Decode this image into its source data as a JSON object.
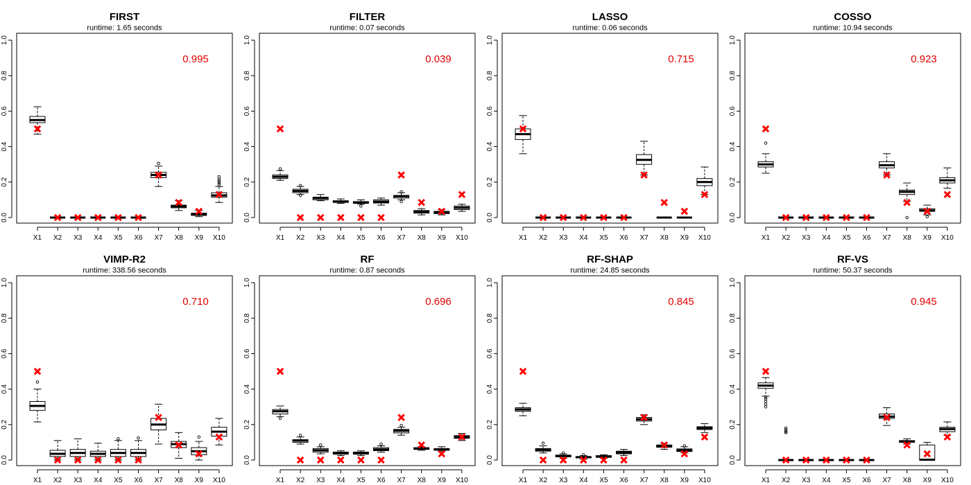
{
  "colors": {
    "box": "#000000",
    "truth": "#ff0000",
    "score": "#e00000"
  },
  "chart_data": [
    {
      "type": "boxplot",
      "title": "FIRST",
      "subtitle": "runtime: 1.65 seconds",
      "score": "0.995",
      "categories": [
        "X1",
        "X2",
        "X3",
        "X4",
        "X5",
        "X6",
        "X7",
        "X8",
        "X9",
        "X10"
      ],
      "ylim": [
        0,
        1
      ],
      "yticks": [
        "0.0",
        "0.2",
        "0.4",
        "0.6",
        "0.8",
        "1.0"
      ],
      "boxes": [
        {
          "lw": 0.47,
          "q1": 0.535,
          "med": 0.55,
          "q3": 0.57,
          "uw": 0.625,
          "out": []
        },
        {
          "lw": 0,
          "q1": 0,
          "med": 0,
          "q3": 0,
          "uw": 0,
          "out": []
        },
        {
          "lw": 0,
          "q1": 0,
          "med": 0,
          "q3": 0,
          "uw": 0,
          "out": []
        },
        {
          "lw": 0,
          "q1": 0,
          "med": 0,
          "q3": 0,
          "uw": 0,
          "out": []
        },
        {
          "lw": 0,
          "q1": 0,
          "med": 0,
          "q3": 0,
          "uw": 0,
          "out": []
        },
        {
          "lw": 0,
          "q1": 0,
          "med": 0,
          "q3": 0,
          "uw": 0,
          "out": []
        },
        {
          "lw": 0.175,
          "q1": 0.225,
          "med": 0.24,
          "q3": 0.255,
          "uw": 0.29,
          "out": [
            0.305
          ]
        },
        {
          "lw": 0.04,
          "q1": 0.055,
          "med": 0.063,
          "q3": 0.07,
          "uw": 0.095,
          "out": []
        },
        {
          "lw": 0.005,
          "q1": 0.012,
          "med": 0.018,
          "q3": 0.025,
          "uw": 0.04,
          "out": []
        },
        {
          "lw": 0.085,
          "q1": 0.115,
          "med": 0.125,
          "q3": 0.14,
          "uw": 0.175,
          "out": [
            0.185,
            0.195,
            0.205,
            0.215,
            0.23
          ]
        }
      ],
      "truth": [
        0.5,
        0,
        0,
        0,
        0,
        0,
        0.24,
        0.085,
        0.035,
        0.13
      ]
    },
    {
      "type": "boxplot",
      "title": "FILTER",
      "subtitle": "runtime: 0.07 seconds",
      "score": "0.039",
      "categories": [
        "X1",
        "X2",
        "X3",
        "X4",
        "X5",
        "X6",
        "X7",
        "X8",
        "X9",
        "X10"
      ],
      "ylim": [
        0,
        1
      ],
      "yticks": [
        "0.0",
        "0.2",
        "0.4",
        "0.6",
        "0.8",
        "1.0"
      ],
      "boxes": [
        {
          "lw": 0.21,
          "q1": 0.22,
          "med": 0.23,
          "q3": 0.24,
          "uw": 0.265,
          "out": [
            0.275
          ]
        },
        {
          "lw": 0.13,
          "q1": 0.14,
          "med": 0.15,
          "q3": 0.16,
          "uw": 0.175,
          "out": [
            0.125,
            0.18
          ]
        },
        {
          "lw": 0.095,
          "q1": 0.1,
          "med": 0.11,
          "q3": 0.115,
          "uw": 0.13,
          "out": []
        },
        {
          "lw": 0.08,
          "q1": 0.085,
          "med": 0.09,
          "q3": 0.095,
          "uw": 0.105,
          "out": []
        },
        {
          "lw": 0.075,
          "q1": 0.08,
          "med": 0.085,
          "q3": 0.09,
          "uw": 0.1,
          "out": [
            0.065
          ]
        },
        {
          "lw": 0.07,
          "q1": 0.082,
          "med": 0.09,
          "q3": 0.1,
          "uw": 0.11,
          "out": []
        },
        {
          "lw": 0.1,
          "q1": 0.11,
          "med": 0.12,
          "q3": 0.125,
          "uw": 0.14,
          "out": [
            0.09,
            0.145
          ]
        },
        {
          "lw": 0.015,
          "q1": 0.025,
          "med": 0.032,
          "q3": 0.04,
          "uw": 0.05,
          "out": []
        },
        {
          "lw": 0.015,
          "q1": 0.022,
          "med": 0.03,
          "q3": 0.035,
          "uw": 0.045,
          "out": []
        },
        {
          "lw": 0.035,
          "q1": 0.045,
          "med": 0.055,
          "q3": 0.065,
          "uw": 0.075,
          "out": []
        }
      ],
      "truth": [
        0.5,
        0,
        0,
        0,
        0,
        0,
        0.24,
        0.085,
        0.035,
        0.13
      ]
    },
    {
      "type": "boxplot",
      "title": "LASSO",
      "subtitle": "runtime: 0.06 seconds",
      "score": "0.715",
      "categories": [
        "X1",
        "X2",
        "X3",
        "X4",
        "X5",
        "X6",
        "X7",
        "X8",
        "X9",
        "X10"
      ],
      "ylim": [
        0,
        1
      ],
      "yticks": [
        "0.0",
        "0.2",
        "0.4",
        "0.6",
        "0.8",
        "1.0"
      ],
      "boxes": [
        {
          "lw": 0.36,
          "q1": 0.44,
          "med": 0.47,
          "q3": 0.5,
          "uw": 0.575,
          "out": []
        },
        {
          "lw": 0,
          "q1": 0,
          "med": 0,
          "q3": 0,
          "uw": 0,
          "out": []
        },
        {
          "lw": 0,
          "q1": 0,
          "med": 0,
          "q3": 0,
          "uw": 0,
          "out": []
        },
        {
          "lw": 0,
          "q1": 0,
          "med": 0,
          "q3": 0,
          "uw": 0,
          "out": []
        },
        {
          "lw": 0,
          "q1": 0,
          "med": 0,
          "q3": 0,
          "uw": 0,
          "out": []
        },
        {
          "lw": 0,
          "q1": 0,
          "med": 0,
          "q3": 0,
          "uw": 0,
          "out": []
        },
        {
          "lw": 0.24,
          "q1": 0.3,
          "med": 0.325,
          "q3": 0.355,
          "uw": 0.43,
          "out": []
        },
        {
          "lw": 0,
          "q1": 0,
          "med": 0,
          "q3": 0,
          "uw": 0,
          "out": []
        },
        {
          "lw": 0,
          "q1": 0,
          "med": 0,
          "q3": 0,
          "uw": 0,
          "out": []
        },
        {
          "lw": 0.13,
          "q1": 0.18,
          "med": 0.2,
          "q3": 0.22,
          "uw": 0.285,
          "out": []
        }
      ],
      "truth": [
        0.5,
        0,
        0,
        0,
        0,
        0,
        0.24,
        0.085,
        0.035,
        0.13
      ]
    },
    {
      "type": "boxplot",
      "title": "COSSO",
      "subtitle": "runtime: 10.94 seconds",
      "score": "0.923",
      "categories": [
        "X1",
        "X2",
        "X3",
        "X4",
        "X5",
        "X6",
        "X7",
        "X8",
        "X9",
        "X10"
      ],
      "ylim": [
        0,
        1
      ],
      "yticks": [
        "0.0",
        "0.2",
        "0.4",
        "0.6",
        "0.8",
        "1.0"
      ],
      "boxes": [
        {
          "lw": 0.25,
          "q1": 0.285,
          "med": 0.3,
          "q3": 0.315,
          "uw": 0.36,
          "out": [
            0.42
          ]
        },
        {
          "lw": 0,
          "q1": 0,
          "med": 0,
          "q3": 0,
          "uw": 0,
          "out": []
        },
        {
          "lw": 0,
          "q1": 0,
          "med": 0,
          "q3": 0,
          "uw": 0,
          "out": []
        },
        {
          "lw": 0,
          "q1": 0,
          "med": 0,
          "q3": 0,
          "uw": 0,
          "out": []
        },
        {
          "lw": 0,
          "q1": 0,
          "med": 0,
          "q3": 0,
          "uw": 0,
          "out": []
        },
        {
          "lw": 0,
          "q1": 0,
          "med": 0,
          "q3": 0,
          "uw": 0,
          "out": []
        },
        {
          "lw": 0.24,
          "q1": 0.28,
          "med": 0.295,
          "q3": 0.315,
          "uw": 0.36,
          "out": []
        },
        {
          "lw": 0.09,
          "q1": 0.13,
          "med": 0.145,
          "q3": 0.155,
          "uw": 0.195,
          "out": [
            0
          ]
        },
        {
          "lw": 0.015,
          "q1": 0.035,
          "med": 0.04,
          "q3": 0.05,
          "uw": 0.07,
          "out": [
            0.005
          ]
        },
        {
          "lw": 0.165,
          "q1": 0.195,
          "med": 0.21,
          "q3": 0.225,
          "uw": 0.28,
          "out": []
        }
      ],
      "truth": [
        0.5,
        0,
        0,
        0,
        0,
        0,
        0.24,
        0.085,
        0.035,
        0.13
      ]
    },
    {
      "type": "boxplot",
      "title": "VIMP-R2",
      "subtitle": "runtime: 338.56 seconds",
      "score": "0.710",
      "categories": [
        "X1",
        "X2",
        "X3",
        "X4",
        "X5",
        "X6",
        "X7",
        "X8",
        "X9",
        "X10"
      ],
      "ylim": [
        0,
        1
      ],
      "yticks": [
        "0.0",
        "0.2",
        "0.4",
        "0.6",
        "0.8",
        "1.0"
      ],
      "boxes": [
        {
          "lw": 0.215,
          "q1": 0.28,
          "med": 0.305,
          "q3": 0.33,
          "uw": 0.4,
          "out": [
            0.44
          ]
        },
        {
          "lw": 0,
          "q1": 0.02,
          "med": 0.035,
          "q3": 0.055,
          "uw": 0.11,
          "out": []
        },
        {
          "lw": 0,
          "q1": 0.02,
          "med": 0.04,
          "q3": 0.06,
          "uw": 0.12,
          "out": []
        },
        {
          "lw": 0,
          "q1": 0.02,
          "med": 0.035,
          "q3": 0.05,
          "uw": 0.095,
          "out": []
        },
        {
          "lw": 0,
          "q1": 0.02,
          "med": 0.04,
          "q3": 0.06,
          "uw": 0.11,
          "out": [
            0.12
          ]
        },
        {
          "lw": 0,
          "q1": 0.02,
          "med": 0.04,
          "q3": 0.06,
          "uw": 0.11,
          "out": [
            0.125
          ]
        },
        {
          "lw": 0.09,
          "q1": 0.17,
          "med": 0.2,
          "q3": 0.235,
          "uw": 0.315,
          "out": []
        },
        {
          "lw": 0.01,
          "q1": 0.07,
          "med": 0.09,
          "q3": 0.105,
          "uw": 0.155,
          "out": []
        },
        {
          "lw": 0,
          "q1": 0.03,
          "med": 0.05,
          "q3": 0.07,
          "uw": 0.105,
          "out": [
            0.13
          ]
        },
        {
          "lw": 0.085,
          "q1": 0.135,
          "med": 0.16,
          "q3": 0.185,
          "uw": 0.235,
          "out": []
        }
      ],
      "truth": [
        0.5,
        0,
        0,
        0,
        0,
        0,
        0.24,
        0.085,
        0.035,
        0.13
      ]
    },
    {
      "type": "boxplot",
      "title": "RF",
      "subtitle": "runtime: 0.87 seconds",
      "score": "0.696",
      "categories": [
        "X1",
        "X2",
        "X3",
        "X4",
        "X5",
        "X6",
        "X7",
        "X8",
        "X9",
        "X10"
      ],
      "ylim": [
        0,
        1
      ],
      "yticks": [
        "0.0",
        "0.2",
        "0.4",
        "0.6",
        "0.8",
        "1.0"
      ],
      "boxes": [
        {
          "lw": 0.245,
          "q1": 0.26,
          "med": 0.275,
          "q3": 0.285,
          "uw": 0.305,
          "out": [
            0.235
          ]
        },
        {
          "lw": 0.09,
          "q1": 0.1,
          "med": 0.11,
          "q3": 0.115,
          "uw": 0.13,
          "out": [
            0.14
          ]
        },
        {
          "lw": 0.035,
          "q1": 0.045,
          "med": 0.055,
          "q3": 0.065,
          "uw": 0.075,
          "out": [
            0.085
          ]
        },
        {
          "lw": 0.025,
          "q1": 0.033,
          "med": 0.04,
          "q3": 0.045,
          "uw": 0.052,
          "out": []
        },
        {
          "lw": 0.025,
          "q1": 0.033,
          "med": 0.04,
          "q3": 0.045,
          "uw": 0.052,
          "out": []
        },
        {
          "lw": 0.045,
          "q1": 0.053,
          "med": 0.06,
          "q3": 0.07,
          "uw": 0.08,
          "out": [
            0.09
          ]
        },
        {
          "lw": 0.14,
          "q1": 0.153,
          "med": 0.165,
          "q3": 0.173,
          "uw": 0.185,
          "out": [
            0.195
          ]
        },
        {
          "lw": 0.055,
          "q1": 0.06,
          "med": 0.065,
          "q3": 0.07,
          "uw": 0.075,
          "out": []
        },
        {
          "lw": 0.05,
          "q1": 0.055,
          "med": 0.06,
          "q3": 0.065,
          "uw": 0.075,
          "out": []
        },
        {
          "lw": 0.11,
          "q1": 0.123,
          "med": 0.13,
          "q3": 0.138,
          "uw": 0.15,
          "out": []
        }
      ],
      "truth": [
        0.5,
        0,
        0,
        0,
        0,
        0,
        0.24,
        0.085,
        0.035,
        0.13
      ]
    },
    {
      "type": "boxplot",
      "title": "RF-SHAP",
      "subtitle": "runtime: 24.85 seconds",
      "score": "0.845",
      "categories": [
        "X1",
        "X2",
        "X3",
        "X4",
        "X5",
        "X6",
        "X7",
        "X8",
        "X9",
        "X10"
      ],
      "ylim": [
        0,
        1
      ],
      "yticks": [
        "0.0",
        "0.2",
        "0.4",
        "0.6",
        "0.8",
        "1.0"
      ],
      "boxes": [
        {
          "lw": 0.25,
          "q1": 0.275,
          "med": 0.285,
          "q3": 0.295,
          "uw": 0.32,
          "out": []
        },
        {
          "lw": 0.04,
          "q1": 0.05,
          "med": 0.058,
          "q3": 0.065,
          "uw": 0.08,
          "out": [
            0.095
          ]
        },
        {
          "lw": 0.01,
          "q1": 0.018,
          "med": 0.023,
          "q3": 0.028,
          "uw": 0.035,
          "out": [
            0.04
          ]
        },
        {
          "lw": 0.005,
          "q1": 0.012,
          "med": 0.016,
          "q3": 0.02,
          "uw": 0.025,
          "out": [
            0.03
          ]
        },
        {
          "lw": 0.01,
          "q1": 0.015,
          "med": 0.02,
          "q3": 0.025,
          "uw": 0.03,
          "out": []
        },
        {
          "lw": 0.025,
          "q1": 0.035,
          "med": 0.043,
          "q3": 0.05,
          "uw": 0.06,
          "out": []
        },
        {
          "lw": 0.2,
          "q1": 0.22,
          "med": 0.23,
          "q3": 0.24,
          "uw": 0.255,
          "out": []
        },
        {
          "lw": 0.06,
          "q1": 0.072,
          "med": 0.08,
          "q3": 0.085,
          "uw": 0.095,
          "out": []
        },
        {
          "lw": 0.04,
          "q1": 0.048,
          "med": 0.055,
          "q3": 0.063,
          "uw": 0.075,
          "out": [
            0.08
          ]
        },
        {
          "lw": 0.155,
          "q1": 0.172,
          "med": 0.18,
          "q3": 0.188,
          "uw": 0.205,
          "out": []
        }
      ],
      "truth": [
        0.5,
        0,
        0,
        0,
        0,
        0,
        0.24,
        0.085,
        0.035,
        0.13
      ]
    },
    {
      "type": "boxplot",
      "title": "RF-VS",
      "subtitle": "runtime: 50.37 seconds",
      "score": "0.945",
      "categories": [
        "X1",
        "X2",
        "X3",
        "X4",
        "X5",
        "X6",
        "X7",
        "X8",
        "X9",
        "X10"
      ],
      "ylim": [
        0,
        1
      ],
      "yticks": [
        "0.0",
        "0.2",
        "0.4",
        "0.6",
        "0.8",
        "1.0"
      ],
      "boxes": [
        {
          "lw": 0.36,
          "q1": 0.405,
          "med": 0.42,
          "q3": 0.435,
          "uw": 0.465,
          "out": [
            0.3,
            0.315,
            0.33,
            0.345,
            0.355
          ]
        },
        {
          "lw": 0,
          "q1": 0,
          "med": 0,
          "q3": 0,
          "uw": 0,
          "out": [
            0.155,
            0.16,
            0.17,
            0.18
          ]
        },
        {
          "lw": 0,
          "q1": 0,
          "med": 0,
          "q3": 0,
          "uw": 0,
          "out": []
        },
        {
          "lw": 0,
          "q1": 0,
          "med": 0,
          "q3": 0,
          "uw": 0,
          "out": []
        },
        {
          "lw": 0,
          "q1": 0,
          "med": 0,
          "q3": 0,
          "uw": 0,
          "out": []
        },
        {
          "lw": 0,
          "q1": 0,
          "med": 0,
          "q3": 0,
          "uw": 0,
          "out": []
        },
        {
          "lw": 0.195,
          "q1": 0.235,
          "med": 0.245,
          "q3": 0.26,
          "uw": 0.295,
          "out": []
        },
        {
          "lw": 0.09,
          "q1": 0.1,
          "med": 0.105,
          "q3": 0.11,
          "uw": 0.12,
          "out": []
        },
        {
          "lw": 0,
          "q1": 0,
          "med": 0.002,
          "q3": 0.085,
          "uw": 0.1,
          "out": []
        },
        {
          "lw": 0.14,
          "q1": 0.16,
          "med": 0.175,
          "q3": 0.185,
          "uw": 0.215,
          "out": []
        }
      ],
      "truth": [
        0.5,
        0,
        0,
        0,
        0,
        0,
        0.24,
        0.085,
        0.035,
        0.13
      ]
    }
  ]
}
